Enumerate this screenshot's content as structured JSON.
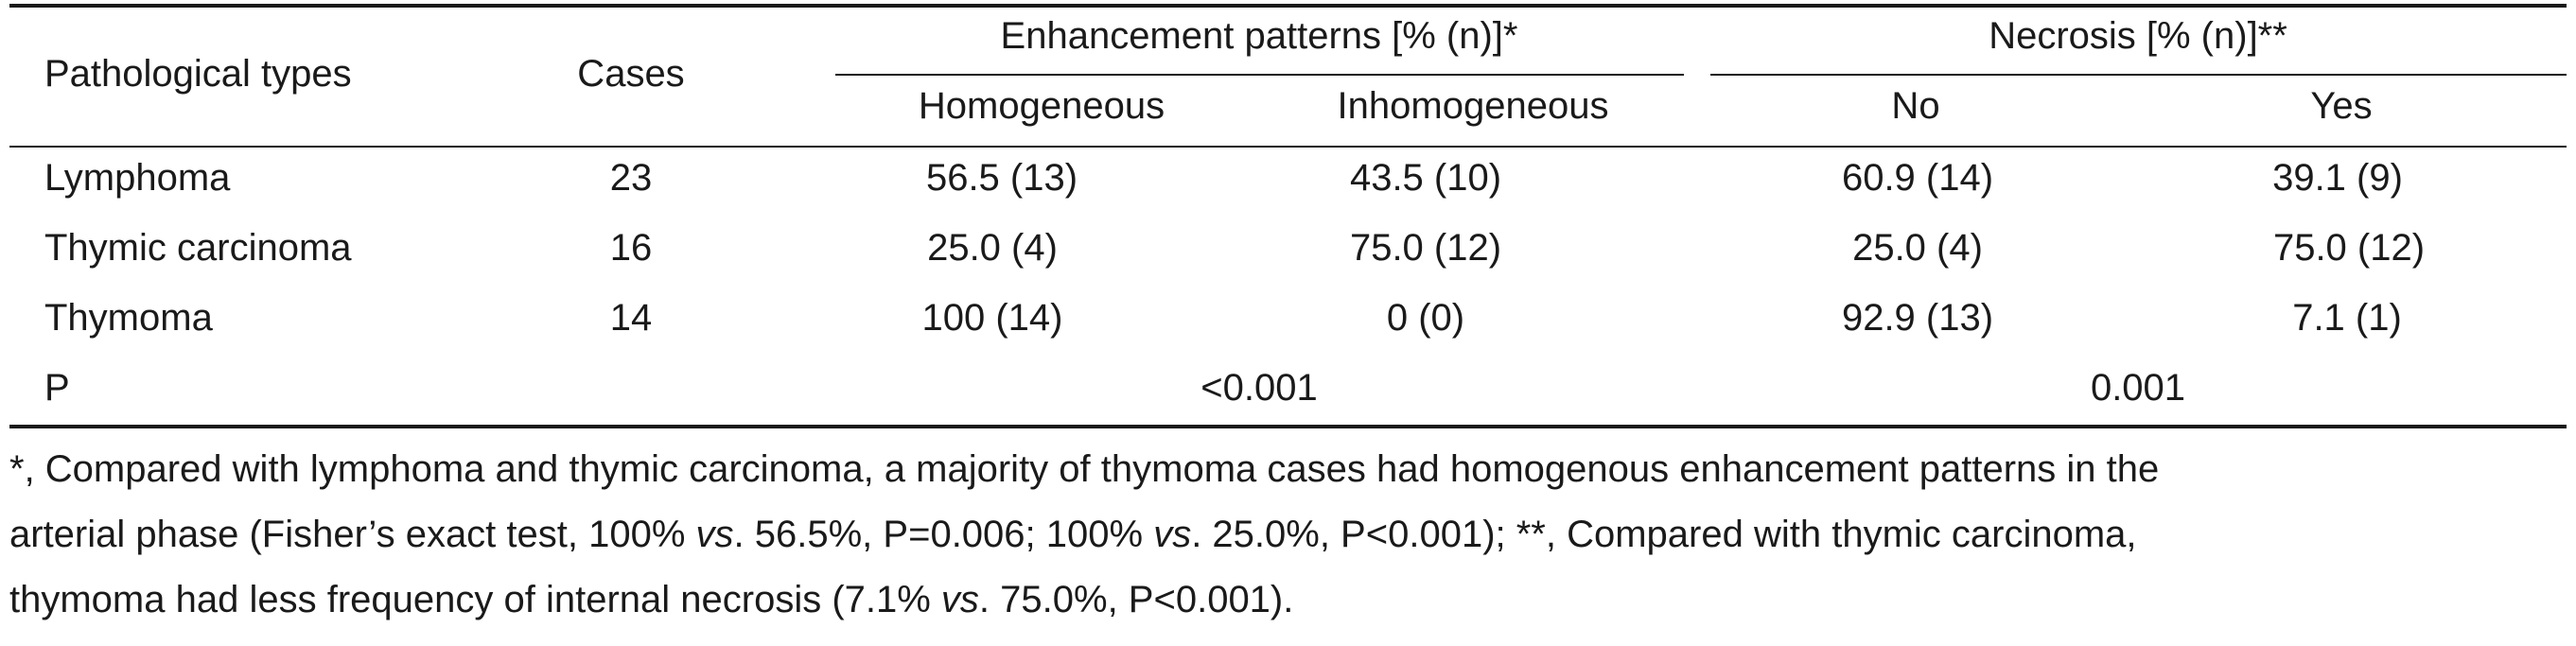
{
  "table": {
    "headers": {
      "pathological_types": "Pathological types",
      "cases": "Cases",
      "enhancement_group": "Enhancement patterns [% (n)]*",
      "necrosis_group": "Necrosis [% (n)]**",
      "homogeneous": "Homogeneous",
      "inhomogeneous": "Inhomogeneous",
      "no": "No",
      "yes": "Yes"
    },
    "rows": [
      {
        "type": "Lymphoma",
        "cases": "23",
        "homogeneous": "56.5 (13)",
        "inhomogeneous": "43.5 (10)",
        "no": "60.9 (14)",
        "yes": "39.1 (9)"
      },
      {
        "type": "Thymic carcinoma",
        "cases": "16",
        "homogeneous": "25.0 (4)",
        "inhomogeneous": "75.0 (12)",
        "no": "25.0 (4)",
        "yes": "75.0 (12)"
      },
      {
        "type": "Thymoma",
        "cases": "14",
        "homogeneous": "100 (14)",
        "inhomogeneous": "0 (0)",
        "no": "92.9 (13)",
        "yes": "7.1 (1)"
      }
    ],
    "p_row": {
      "label": "P",
      "enhancement_p": "<0.001",
      "necrosis_p": "0.001"
    }
  },
  "footnote": {
    "line1": "*, Compared with lymphoma and thymic carcinoma, a majority of thymoma cases had homogenous enhancement patterns in the",
    "line2_a": "arterial phase (Fisher’s exact test, 100% ",
    "vs": "vs",
    "line2_b": ". 56.5%, P=0.006; 100% ",
    "line2_c": ". 25.0%, P<0.001); **, Compared with thymic carcinoma,",
    "line3_a": "thymoma had less frequency of internal necrosis (7.1% ",
    "line3_b": ". 75.0%, P<0.001)."
  }
}
